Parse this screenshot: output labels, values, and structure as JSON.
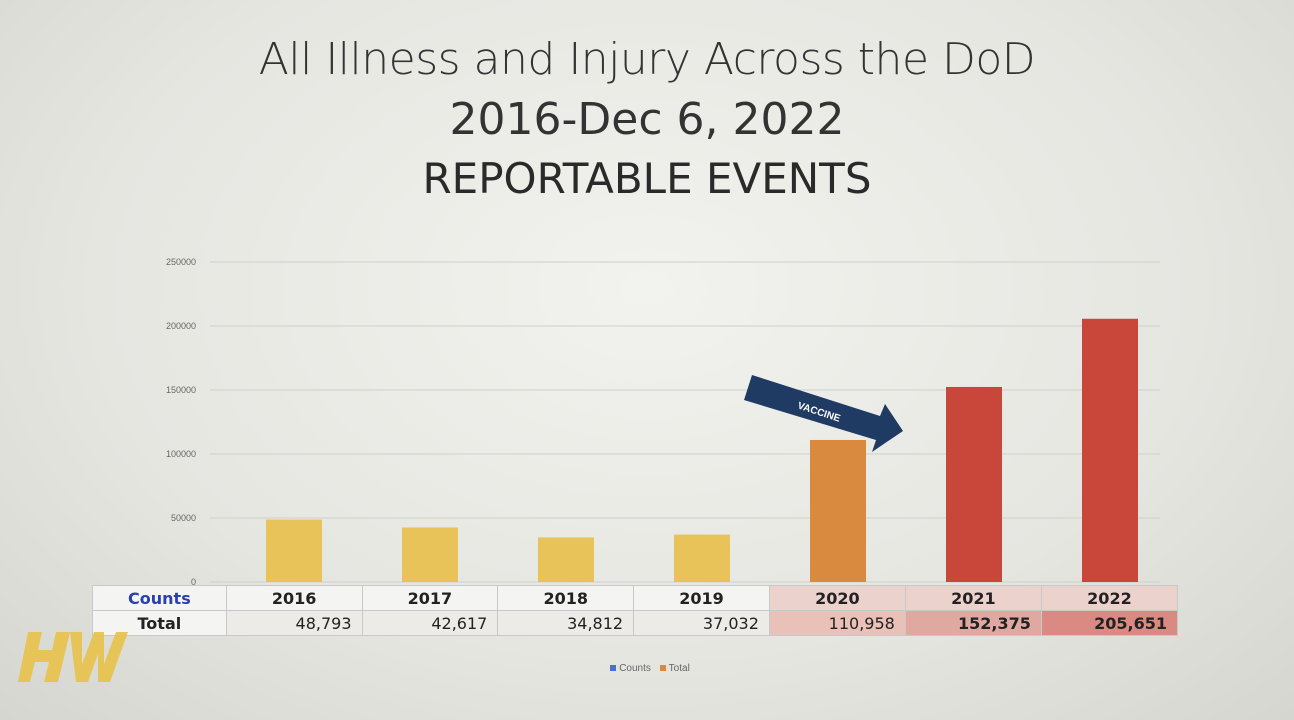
{
  "title": {
    "line1": "All Illness and Injury Across the DoD",
    "line2": "2016-Dec 6, 2022",
    "line3": "REPORTABLE EVENTS"
  },
  "colors": {
    "low": "#e8c35a",
    "mid": "#d98a3f",
    "high": "#c9473a",
    "arrow": "#1f3b63",
    "counts": "#4a6fd1"
  },
  "chart_data": {
    "type": "bar",
    "categories": [
      "2016",
      "2017",
      "2018",
      "2019",
      "2020",
      "2021",
      "2022"
    ],
    "series": [
      {
        "name": "Counts",
        "values": [
          0,
          0,
          0,
          0,
          0,
          0,
          0
        ]
      },
      {
        "name": "Total",
        "values": [
          48793,
          42617,
          34812,
          37032,
          110958,
          152375,
          205651
        ]
      }
    ],
    "ylim": [
      0,
      250000
    ],
    "yticks": [
      0,
      50000,
      100000,
      150000,
      200000,
      250000
    ],
    "grid": true,
    "legend_position": "bottom",
    "annotation": {
      "text": "VACCINE"
    },
    "table": {
      "row_labels": [
        "Counts",
        "Total"
      ],
      "formatted_totals": [
        "48,793",
        "42,617",
        "34,812",
        "37,032",
        "110,958",
        "152,375",
        "205,651"
      ]
    }
  },
  "logo": {
    "name": "hw-logo"
  }
}
